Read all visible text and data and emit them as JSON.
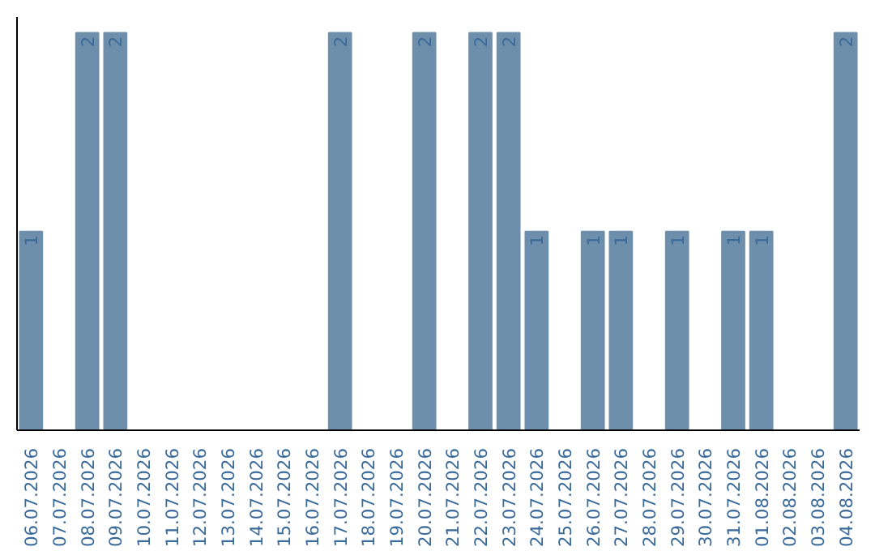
{
  "chart_data": {
    "type": "bar",
    "categories": [
      "06.07.2026",
      "07.07.2026",
      "08.07.2026",
      "09.07.2026",
      "10.07.2026",
      "11.07.2026",
      "12.07.2026",
      "13.07.2026",
      "14.07.2026",
      "15.07.2026",
      "16.07.2026",
      "17.07.2026",
      "18.07.2026",
      "19.07.2026",
      "20.07.2026",
      "21.07.2026",
      "22.07.2026",
      "23.07.2026",
      "24.07.2026",
      "25.07.2026",
      "26.07.2026",
      "27.07.2026",
      "28.07.2026",
      "29.07.2026",
      "30.07.2026",
      "31.07.2026",
      "01.08.2026",
      "02.08.2026",
      "03.08.2026",
      "04.08.2026"
    ],
    "values": [
      1,
      0,
      2,
      2,
      0,
      0,
      0,
      0,
      0,
      0,
      0,
      2,
      0,
      0,
      2,
      0,
      2,
      2,
      1,
      0,
      1,
      1,
      0,
      1,
      0,
      1,
      1,
      0,
      0,
      2
    ],
    "value_labels": [
      "1",
      null,
      "2",
      "2",
      null,
      null,
      null,
      null,
      null,
      null,
      null,
      "2",
      null,
      null,
      "2",
      null,
      "2",
      "2",
      "1",
      null,
      "1",
      "1",
      null,
      "1",
      null,
      "1",
      "1",
      null,
      null,
      "2"
    ],
    "color": "#6d8fab",
    "ylim": [
      0,
      2.08
    ],
    "tick_labels": "x",
    "grid": false
  }
}
